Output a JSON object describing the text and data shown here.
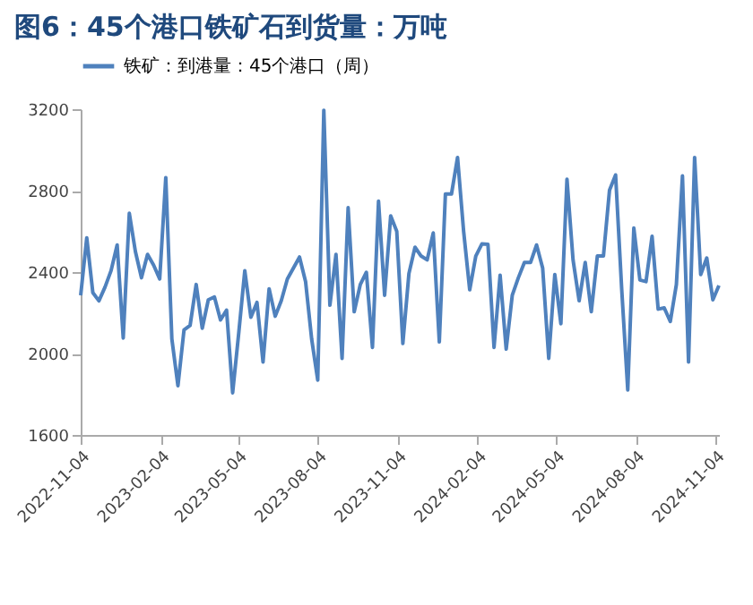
{
  "chart_data": {
    "type": "line",
    "title": "图6：45个港口铁矿石到货量：万吨",
    "x": [
      "2022-11-04",
      "2022-11-11",
      "2022-11-18",
      "2022-11-25",
      "2022-12-02",
      "2022-12-09",
      "2022-12-16",
      "2022-12-23",
      "2022-12-30",
      "2023-01-06",
      "2023-01-13",
      "2023-01-20",
      "2023-01-27",
      "2023-02-03",
      "2023-02-10",
      "2023-02-17",
      "2023-02-24",
      "2023-03-03",
      "2023-03-10",
      "2023-03-17",
      "2023-03-24",
      "2023-03-31",
      "2023-04-07",
      "2023-04-14",
      "2023-04-21",
      "2023-04-28",
      "2023-05-05",
      "2023-05-12",
      "2023-05-19",
      "2023-05-26",
      "2023-06-02",
      "2023-06-09",
      "2023-06-16",
      "2023-06-23",
      "2023-06-30",
      "2023-07-07",
      "2023-07-14",
      "2023-07-21",
      "2023-07-28",
      "2023-08-04",
      "2023-08-11",
      "2023-08-18",
      "2023-08-25",
      "2023-09-01",
      "2023-09-08",
      "2023-09-15",
      "2023-09-22",
      "2023-09-29",
      "2023-10-06",
      "2023-10-13",
      "2023-10-20",
      "2023-10-27",
      "2023-11-03",
      "2023-11-10",
      "2023-11-17",
      "2023-11-24",
      "2023-12-01",
      "2023-12-08",
      "2023-12-15",
      "2023-12-22",
      "2023-12-29",
      "2024-01-05",
      "2024-01-12",
      "2024-01-19",
      "2024-01-26",
      "2024-02-02",
      "2024-02-09",
      "2024-02-16",
      "2024-02-23",
      "2024-03-01",
      "2024-03-08",
      "2024-03-15",
      "2024-03-22",
      "2024-03-29",
      "2024-04-05",
      "2024-04-12",
      "2024-04-19",
      "2024-04-26",
      "2024-05-03",
      "2024-05-10",
      "2024-05-17",
      "2024-05-24",
      "2024-05-31",
      "2024-06-07",
      "2024-06-14",
      "2024-06-21",
      "2024-06-28",
      "2024-07-05",
      "2024-07-12",
      "2024-07-19",
      "2024-07-26",
      "2024-08-02",
      "2024-08-09",
      "2024-08-16",
      "2024-08-23",
      "2024-08-30",
      "2024-09-06",
      "2024-09-13",
      "2024-09-20",
      "2024-09-27",
      "2024-10-04",
      "2024-10-11",
      "2024-10-18",
      "2024-10-25",
      "2024-11-01",
      "2024-11-08"
    ],
    "series": [
      {
        "name": "铁矿：到港量：45个港口（周）",
        "color": "#4f81bd",
        "values": [
          2286,
          2568,
          2299,
          2259,
          2326,
          2407,
          2533,
          2076,
          2689,
          2501,
          2372,
          2487,
          2434,
          2366,
          2864,
          2071,
          1842,
          2116,
          2138,
          2339,
          2124,
          2264,
          2278,
          2165,
          2213,
          1807,
          2100,
          2407,
          2178,
          2251,
          1958,
          2318,
          2183,
          2259,
          2366,
          2420,
          2474,
          2353,
          2071,
          1869,
          3195,
          2237,
          2487,
          1976,
          2716,
          2205,
          2339,
          2399,
          2030,
          2748,
          2286,
          2676,
          2600,
          2049,
          2393,
          2522,
          2479,
          2460,
          2592,
          2057,
          2783,
          2783,
          2963,
          2600,
          2313,
          2479,
          2538,
          2536,
          2030,
          2385,
          2022,
          2286,
          2372,
          2447,
          2447,
          2533,
          2420,
          1976,
          2388,
          2146,
          2856,
          2460,
          2259,
          2447,
          2205,
          2479,
          2479,
          2802,
          2877,
          2318,
          1821,
          2616,
          2361,
          2353,
          2576,
          2218,
          2224,
          2157,
          2339,
          2872,
          1958,
          2963,
          2388,
          2469,
          2264,
          2334
        ]
      }
    ],
    "xlim": [
      "2022-11-04",
      "2024-11-08"
    ],
    "xticks": [
      "2022-11-04",
      "2023-02-04",
      "2023-05-04",
      "2023-08-04",
      "2023-11-04",
      "2024-02-04",
      "2024-05-04",
      "2024-08-04",
      "2024-11-04"
    ],
    "ylim": [
      1600,
      3200
    ],
    "yticks": [
      1600,
      2000,
      2400,
      2800,
      3200
    ],
    "grid": false,
    "legend": "top",
    "marker": "none",
    "line_style": "solid"
  }
}
